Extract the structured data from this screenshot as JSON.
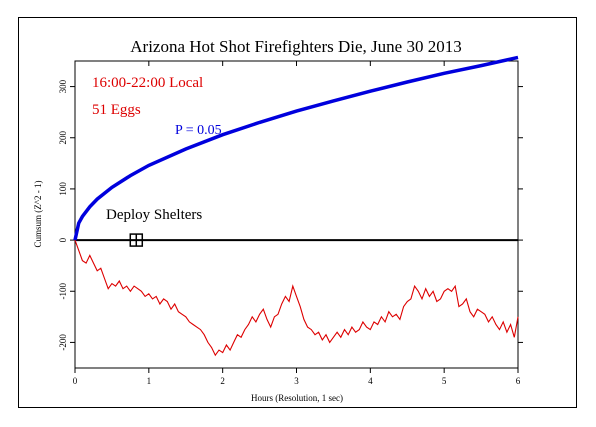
{
  "chart_data": {
    "type": "line",
    "title": "Arizona Hot Shot Firefighters Die, June 30 2013",
    "xlabel": "Hours (Resolution, 1 sec)",
    "ylabel": "Cumsum (Z^2 - 1)",
    "xlim": [
      0,
      6
    ],
    "ylim": [
      -250,
      350
    ],
    "x_ticks": [
      0,
      1,
      2,
      3,
      4,
      5,
      6
    ],
    "y_ticks": [
      -200,
      -100,
      0,
      100,
      200,
      300
    ],
    "annotations": {
      "time_window": "16:00-22:00 Local",
      "eggs": "51 Eggs",
      "p_curve_label": "P = 0.05",
      "event_label": "Deploy Shelters"
    },
    "event_marker": {
      "x": 0.83,
      "y": 0
    },
    "series": [
      {
        "name": "P = 0.05",
        "color": "#0000dd",
        "x": [
          0,
          0.05,
          0.1,
          0.2,
          0.3,
          0.5,
          0.75,
          1.0,
          1.5,
          2.0,
          2.5,
          3.0,
          3.5,
          4.0,
          4.5,
          5.0,
          5.5,
          6.0
        ],
        "y": [
          0,
          33,
          46,
          65,
          80,
          103,
          126,
          146,
          178,
          206,
          230,
          252,
          272,
          291,
          309,
          326,
          341,
          357
        ]
      },
      {
        "name": "",
        "color": "#dd0000",
        "x": [
          0,
          0.05,
          0.1,
          0.15,
          0.2,
          0.25,
          0.3,
          0.35,
          0.4,
          0.45,
          0.5,
          0.55,
          0.6,
          0.65,
          0.7,
          0.75,
          0.8,
          0.85,
          0.9,
          0.95,
          1.0,
          1.05,
          1.1,
          1.15,
          1.2,
          1.25,
          1.3,
          1.35,
          1.4,
          1.45,
          1.5,
          1.55,
          1.6,
          1.65,
          1.7,
          1.75,
          1.8,
          1.85,
          1.9,
          1.95,
          2.0,
          2.05,
          2.1,
          2.15,
          2.2,
          2.25,
          2.3,
          2.35,
          2.4,
          2.45,
          2.5,
          2.55,
          2.6,
          2.65,
          2.7,
          2.75,
          2.8,
          2.85,
          2.9,
          2.95,
          3.0,
          3.05,
          3.1,
          3.15,
          3.2,
          3.25,
          3.3,
          3.35,
          3.4,
          3.45,
          3.5,
          3.55,
          3.6,
          3.65,
          3.7,
          3.75,
          3.8,
          3.85,
          3.9,
          3.95,
          4.0,
          4.05,
          4.1,
          4.15,
          4.2,
          4.25,
          4.3,
          4.35,
          4.4,
          4.45,
          4.5,
          4.55,
          4.6,
          4.65,
          4.7,
          4.75,
          4.8,
          4.85,
          4.9,
          4.95,
          5.0,
          5.05,
          5.1,
          5.15,
          5.2,
          5.25,
          5.3,
          5.35,
          5.4,
          5.45,
          5.5,
          5.55,
          5.6,
          5.65,
          5.7,
          5.75,
          5.8,
          5.85,
          5.9,
          5.95,
          6.0
        ],
        "y": [
          0,
          -20,
          -40,
          -45,
          -30,
          -45,
          -60,
          -55,
          -75,
          -95,
          -85,
          -90,
          -80,
          -95,
          -90,
          -100,
          -90,
          -95,
          -100,
          -110,
          -105,
          -115,
          -110,
          -125,
          -115,
          -120,
          -135,
          -125,
          -140,
          -145,
          -150,
          -160,
          -165,
          -170,
          -175,
          -185,
          -200,
          -210,
          -225,
          -215,
          -220,
          -205,
          -215,
          -200,
          -185,
          -190,
          -175,
          -165,
          -150,
          -160,
          -145,
          -135,
          -155,
          -170,
          -150,
          -145,
          -125,
          -110,
          -120,
          -90,
          -110,
          -130,
          -155,
          -170,
          -175,
          -185,
          -180,
          -195,
          -185,
          -200,
          -190,
          -180,
          -190,
          -175,
          -185,
          -170,
          -180,
          -175,
          -160,
          -170,
          -175,
          -160,
          -165,
          -150,
          -160,
          -140,
          -150,
          -145,
          -155,
          -130,
          -120,
          -115,
          -90,
          -100,
          -115,
          -95,
          -110,
          -100,
          -120,
          -115,
          -100,
          -95,
          -100,
          -90,
          -130,
          -125,
          -115,
          -140,
          -150,
          -135,
          -140,
          -145,
          -160,
          -150,
          -165,
          -175,
          -160,
          -180,
          -165,
          -190,
          -150
        ]
      }
    ],
    "grid": false,
    "legend": "none"
  }
}
